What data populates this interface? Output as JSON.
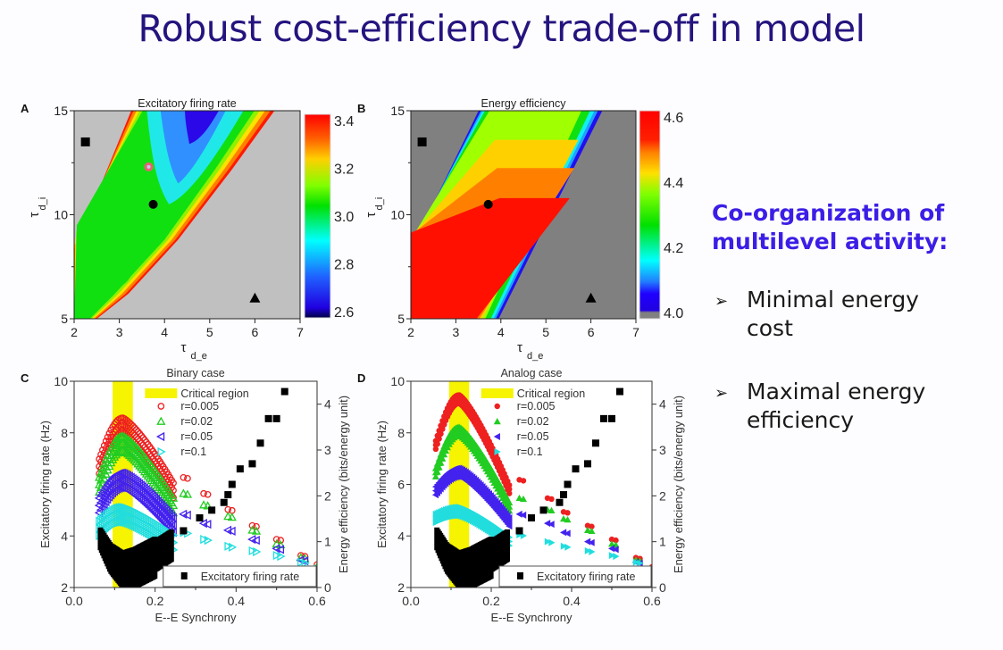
{
  "slide": {
    "title": "Robust cost-efficiency trade-off in model",
    "side_heading_line1": "Co-organization of",
    "side_heading_line2": "multilevel activity:",
    "bullets": [
      {
        "icon": "arrow-bullet-icon",
        "glyph": "➢",
        "text": "Minimal energy cost"
      },
      {
        "icon": "arrow-bullet-icon",
        "glyph": "➢",
        "text": "Maximal energy efficiency"
      }
    ],
    "colors": {
      "title": "#24147e",
      "heading": "#3b1ee6"
    }
  },
  "chart_data": [
    {
      "panel": "A",
      "type": "heatmap",
      "title": "Excitatory firing rate",
      "xlabel": "τ",
      "xlabel_sub": "d_e",
      "ylabel": "τ",
      "ylabel_sub": "d_i",
      "xlim": [
        2,
        7
      ],
      "ylim": [
        5,
        15
      ],
      "xticks": [
        "2",
        "3",
        "4",
        "5",
        "6",
        "7"
      ],
      "yticks": [
        "5",
        "10",
        "15"
      ],
      "colorbar": {
        "range": [
          2.6,
          3.4
        ],
        "ticks": [
          "3.4",
          "3.2",
          "3.0",
          "2.8",
          "2.6"
        ]
      },
      "background_color": "#c0c0c0",
      "markers": [
        {
          "shape": "square",
          "x": 2.25,
          "y": 13.5,
          "color": "#000000"
        },
        {
          "shape": "circle",
          "x": 3.75,
          "y": 10.5,
          "color": "#000000"
        },
        {
          "shape": "circle",
          "x": 3.65,
          "y": 12.3,
          "color": "#e8607a"
        },
        {
          "shape": "triangle",
          "x": 6.0,
          "y": 6.0,
          "color": "#000000"
        }
      ]
    },
    {
      "panel": "B",
      "type": "heatmap",
      "title": "Energy efficiency",
      "xlabel": "τ",
      "xlabel_sub": "d_e",
      "ylabel": "τ",
      "ylabel_sub": "d_i",
      "xlim": [
        2,
        7
      ],
      "ylim": [
        5,
        15
      ],
      "xticks": [
        "2",
        "3",
        "4",
        "5",
        "6",
        "7"
      ],
      "yticks": [
        "5",
        "10",
        "15"
      ],
      "colorbar": {
        "range": [
          4.0,
          4.6
        ],
        "ticks": [
          "4.6",
          "4.4",
          "4.2",
          "4.0"
        ]
      },
      "background_color": "#808080",
      "markers": [
        {
          "shape": "square",
          "x": 2.25,
          "y": 13.5,
          "color": "#000000"
        },
        {
          "shape": "circle",
          "x": 3.72,
          "y": 10.5,
          "color": "#000000"
        },
        {
          "shape": "triangle",
          "x": 6.0,
          "y": 6.0,
          "color": "#000000"
        }
      ]
    },
    {
      "panel": "C",
      "type": "scatter",
      "title": "Binary case",
      "xlabel": "E--E Synchrony",
      "ylabel": "Excitatory firing rate (Hz)",
      "y2label": "Energy efficiency (bits/energy unit)",
      "xlim": [
        0,
        0.6
      ],
      "ylim": [
        2,
        10
      ],
      "y2lim": [
        0,
        4.5
      ],
      "xticks": [
        "0.0",
        "0.2",
        "0.4",
        "0.6"
      ],
      "yticks": [
        "2",
        "4",
        "6",
        "8",
        "10"
      ],
      "y2ticks": [
        "0",
        "1",
        "2",
        "3",
        "4"
      ],
      "critical_region": [
        0.095,
        0.145
      ],
      "marker_fill": "open",
      "legend": {
        "critical": "Critical region",
        "firing": "Excitatory firing rate"
      },
      "series": [
        {
          "name": "r=0.005",
          "color": "#ee2020",
          "marker": "circle",
          "peak": 3.7,
          "start": 2.8,
          "tail": [
            [
              0.27,
              2.4
            ],
            [
              0.32,
              2.05
            ],
            [
              0.38,
              1.7
            ],
            [
              0.44,
              1.35
            ],
            [
              0.5,
              1.05
            ],
            [
              0.56,
              0.7
            ],
            [
              0.6,
              0.5
            ]
          ]
        },
        {
          "name": "r=0.02",
          "color": "#22cc22",
          "marker": "triangle-up",
          "peak": 3.3,
          "start": 2.4,
          "tail": [
            [
              0.27,
              2.05
            ],
            [
              0.32,
              1.8
            ],
            [
              0.38,
              1.55
            ],
            [
              0.44,
              1.25
            ],
            [
              0.5,
              0.95
            ],
            [
              0.56,
              0.65
            ],
            [
              0.6,
              0.45
            ]
          ]
        },
        {
          "name": "r=0.05",
          "color": "#4422ee",
          "marker": "triangle-left",
          "peak": 2.5,
          "start": 1.95,
          "tail": [
            [
              0.27,
              1.6
            ],
            [
              0.32,
              1.4
            ],
            [
              0.38,
              1.25
            ],
            [
              0.44,
              1.05
            ],
            [
              0.5,
              0.85
            ],
            [
              0.56,
              0.6
            ],
            [
              0.6,
              0.42
            ]
          ]
        },
        {
          "name": "r=0.1",
          "color": "#22dddd",
          "marker": "triangle-right",
          "peak": 1.75,
          "start": 1.45,
          "tail": [
            [
              0.27,
              1.2
            ],
            [
              0.32,
              1.05
            ],
            [
              0.38,
              0.9
            ],
            [
              0.44,
              0.8
            ],
            [
              0.5,
              0.7
            ],
            [
              0.56,
              0.55
            ],
            [
              0.6,
              0.4
            ]
          ]
        }
      ],
      "firing_rate": {
        "name": "Excitatory firing rate",
        "color": "#000000",
        "marker": "square",
        "curve": [
          [
            0.065,
            4.0
          ],
          [
            0.09,
            3.3
          ],
          [
            0.12,
            2.9
          ],
          [
            0.15,
            3.0
          ],
          [
            0.2,
            3.4
          ],
          [
            0.24,
            3.8
          ]
        ],
        "points": [
          [
            0.27,
            4.2
          ],
          [
            0.31,
            4.7
          ],
          [
            0.34,
            5.0
          ],
          [
            0.37,
            5.3
          ],
          [
            0.38,
            5.6
          ],
          [
            0.39,
            6.0
          ],
          [
            0.41,
            6.6
          ],
          [
            0.44,
            6.8
          ],
          [
            0.46,
            7.6
          ],
          [
            0.48,
            8.55
          ],
          [
            0.5,
            8.55
          ],
          [
            0.52,
            9.6
          ]
        ]
      }
    },
    {
      "panel": "D",
      "type": "scatter",
      "title": "Analog case",
      "xlabel": "E--E Synchrony",
      "ylabel": "Excitatory firing rate (Hz)",
      "y2label": "Energy efficiency (bits/energy unit)",
      "xlim": [
        0,
        0.6
      ],
      "ylim": [
        2,
        10
      ],
      "y2lim": [
        0,
        4.5
      ],
      "xticks": [
        "0.0",
        "0.2",
        "0.4",
        "0.6"
      ],
      "yticks": [
        "2",
        "4",
        "6",
        "8",
        "10"
      ],
      "y2ticks": [
        "0",
        "1",
        "2",
        "3",
        "4"
      ],
      "critical_region": [
        0.095,
        0.145
      ],
      "marker_fill": "filled",
      "legend": {
        "critical": "Critical region",
        "firing": "Excitatory firing rate"
      },
      "series": [
        {
          "name": "r=0.005",
          "color": "#ee2020",
          "marker": "circle",
          "peak": 4.2,
          "start": 3.2,
          "tail": [
            [
              0.27,
              2.35
            ],
            [
              0.34,
              1.95
            ],
            [
              0.38,
              1.65
            ],
            [
              0.44,
              1.35
            ],
            [
              0.5,
              1.05
            ],
            [
              0.56,
              0.65
            ],
            [
              0.6,
              0.45
            ]
          ]
        },
        {
          "name": "r=0.02",
          "color": "#22cc22",
          "marker": "triangle-up",
          "peak": 3.5,
          "start": 2.6,
          "tail": [
            [
              0.27,
              1.95
            ],
            [
              0.34,
              1.7
            ],
            [
              0.38,
              1.5
            ],
            [
              0.44,
              1.25
            ],
            [
              0.5,
              0.95
            ],
            [
              0.56,
              0.6
            ],
            [
              0.6,
              0.42
            ]
          ]
        },
        {
          "name": "r=0.05",
          "color": "#4422ee",
          "marker": "triangle-left",
          "peak": 2.6,
          "start": 2.2,
          "tail": [
            [
              0.27,
              1.6
            ],
            [
              0.34,
              1.4
            ],
            [
              0.38,
              1.2
            ],
            [
              0.44,
              1.0
            ],
            [
              0.5,
              0.85
            ],
            [
              0.56,
              0.55
            ],
            [
              0.6,
              0.4
            ]
          ]
        },
        {
          "name": "r=0.1",
          "color": "#22dddd",
          "marker": "triangle-right",
          "peak": 1.75,
          "start": 1.6,
          "tail": [
            [
              0.27,
              1.15
            ],
            [
              0.34,
              1.0
            ],
            [
              0.38,
              0.9
            ],
            [
              0.44,
              0.8
            ],
            [
              0.5,
              0.7
            ],
            [
              0.56,
              0.55
            ],
            [
              0.6,
              0.38
            ]
          ]
        }
      ],
      "firing_rate": {
        "name": "Excitatory firing rate",
        "color": "#000000",
        "marker": "square",
        "curve": [
          [
            0.065,
            4.0
          ],
          [
            0.09,
            3.3
          ],
          [
            0.12,
            2.9
          ],
          [
            0.15,
            3.0
          ],
          [
            0.2,
            3.4
          ],
          [
            0.24,
            3.8
          ]
        ],
        "points": [
          [
            0.27,
            4.2
          ],
          [
            0.3,
            4.7
          ],
          [
            0.33,
            5.0
          ],
          [
            0.37,
            5.3
          ],
          [
            0.38,
            5.6
          ],
          [
            0.39,
            6.0
          ],
          [
            0.41,
            6.6
          ],
          [
            0.44,
            6.8
          ],
          [
            0.46,
            7.6
          ],
          [
            0.48,
            8.55
          ],
          [
            0.5,
            8.55
          ],
          [
            0.52,
            9.6
          ]
        ]
      }
    }
  ]
}
